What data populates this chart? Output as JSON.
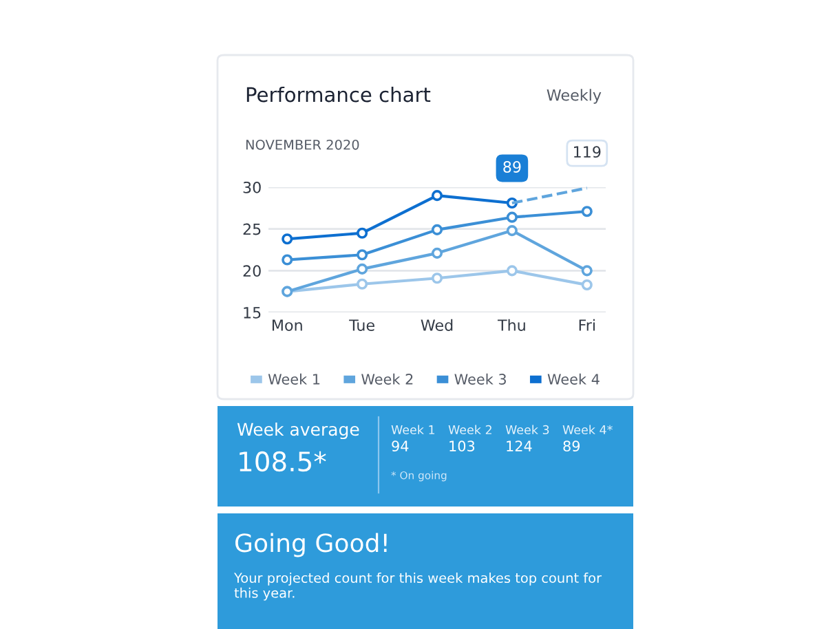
{
  "chart_data": [
    {
      "type": "line",
      "title": "Performance chart",
      "subtitle": "NOVEMBER 2020",
      "categories": [
        "Mon",
        "Tue",
        "Wed",
        "Thu",
        "Fri"
      ],
      "series": [
        {
          "name": "Week 1",
          "color": "#9cc6ea",
          "values": [
            17.5,
            18.4,
            19.1,
            20.0,
            18.3
          ]
        },
        {
          "name": "Week 2",
          "color": "#5fa5dd",
          "values": [
            17.5,
            20.2,
            22.1,
            24.8,
            20.0
          ]
        },
        {
          "name": "Week 3",
          "color": "#3b8fd6",
          "values": [
            21.3,
            21.9,
            24.9,
            26.4,
            27.1
          ]
        },
        {
          "name": "Week 4",
          "color": "#0d6fd0",
          "values": [
            23.8,
            24.5,
            29.0,
            28.1,
            null
          ]
        },
        {
          "color": "#5fa5dd",
          "line_style": "dashed",
          "marker": "none",
          "values": [
            null,
            null,
            null,
            28.1,
            29.9
          ]
        }
      ],
      "ylim": [
        15,
        30
      ],
      "yticks": [
        15,
        20,
        25,
        30
      ],
      "grid": "y",
      "legend": "bottom",
      "marker": "circle",
      "line_style": "solid",
      "annotations": [
        "Weekly",
        {
          "text": "89",
          "x": "Thu",
          "y": 28.1
        },
        {
          "text": "119",
          "x": "Fri",
          "y": 29.9
        }
      ]
    },
    {
      "type": "other",
      "title": "Week average",
      "annotations": [
        "108.5*",
        "Week 1",
        "94",
        "Week 2",
        "103",
        "Week 3",
        "124",
        "Week 4*",
        "89",
        "* On going"
      ]
    },
    {
      "type": "other",
      "title": "Going Good!",
      "annotations": [
        "Your projected count for this week makes top count for this year."
      ]
    }
  ]
}
